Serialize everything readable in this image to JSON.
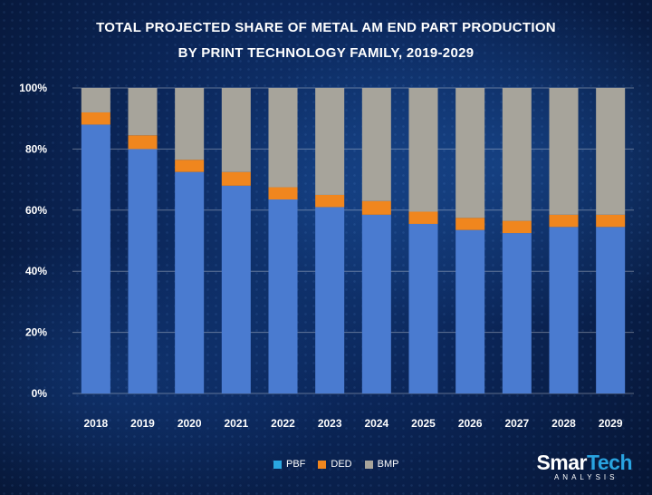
{
  "title_line1": "TOTAL PROJECTED SHARE OF METAL AM END PART PRODUCTION",
  "title_line2": "BY PRINT TECHNOLOGY FAMILY, 2019-2029",
  "logo": {
    "main_part1": "Smar",
    "main_part2": "Tech",
    "sub": "ANALYSIS"
  },
  "colors": {
    "PBF": "#4a7bd0",
    "DED": "#f0861e",
    "BMP": "#a7a49b",
    "PBF_legend": "#2aa7e0"
  },
  "chart_data": {
    "type": "bar",
    "stacked": true,
    "categories": [
      "2018",
      "2019",
      "2020",
      "2021",
      "2022",
      "2023",
      "2024",
      "2025",
      "2026",
      "2027",
      "2028",
      "2029"
    ],
    "series": [
      {
        "name": "PBF",
        "values": [
          88,
          80,
          72.5,
          68,
          63.5,
          61,
          58.5,
          55.5,
          53.5,
          52.5,
          54.5,
          54.5
        ]
      },
      {
        "name": "DED",
        "values": [
          4,
          4.5,
          4,
          4.5,
          4,
          4,
          4.5,
          4,
          4,
          4,
          4,
          4
        ]
      },
      {
        "name": "BMP",
        "values": [
          8,
          15.5,
          23.5,
          27.5,
          32.5,
          35,
          37,
          40.5,
          42.5,
          43.5,
          41.5,
          41.5
        ]
      }
    ],
    "ylim": [
      0,
      100
    ],
    "yticks": [
      "0%",
      "20%",
      "40%",
      "60%",
      "80%",
      "100%"
    ],
    "ytick_values": [
      0,
      20,
      40,
      60,
      80,
      100
    ],
    "xlabel": "",
    "ylabel": "",
    "grid": true,
    "legend_position": "bottom-center"
  }
}
